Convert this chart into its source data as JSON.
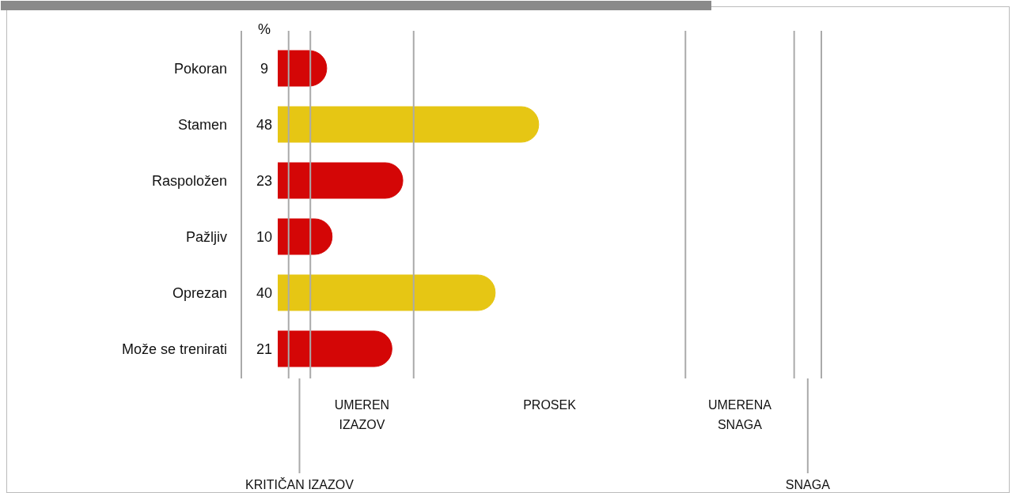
{
  "chart_data": {
    "type": "bar",
    "orientation": "horizontal",
    "categories": [
      "Pokoran",
      "Stamen",
      "Raspoložen",
      "Pažljiv",
      "Oprezan",
      "Može se trenirati"
    ],
    "values": [
      9,
      48,
      23,
      10,
      40,
      21
    ],
    "colors": [
      "#d40606",
      "#e6c614",
      "#d40606",
      "#d40606",
      "#e6c614",
      "#d40606"
    ],
    "data_labels": true,
    "annotations": [
      "%",
      "KRITIČAN IZAZOV",
      "UMEREN IZAZOV",
      "PROSEK",
      "UMERENA SNAGA",
      "SNAGA"
    ],
    "ref_lines": [
      {
        "axis": "x",
        "value": 2,
        "color": "#aaaaaa"
      },
      {
        "axis": "x",
        "value": 6,
        "color": "#aaaaaa"
      },
      {
        "axis": "x",
        "value": 25,
        "color": "#aaaaaa"
      },
      {
        "axis": "x",
        "value": 75,
        "color": "#aaaaaa"
      },
      {
        "axis": "x",
        "value": 95,
        "color": "#aaaaaa"
      },
      {
        "axis": "x",
        "value": 100,
        "color": "#aaaaaa"
      }
    ]
  }
}
